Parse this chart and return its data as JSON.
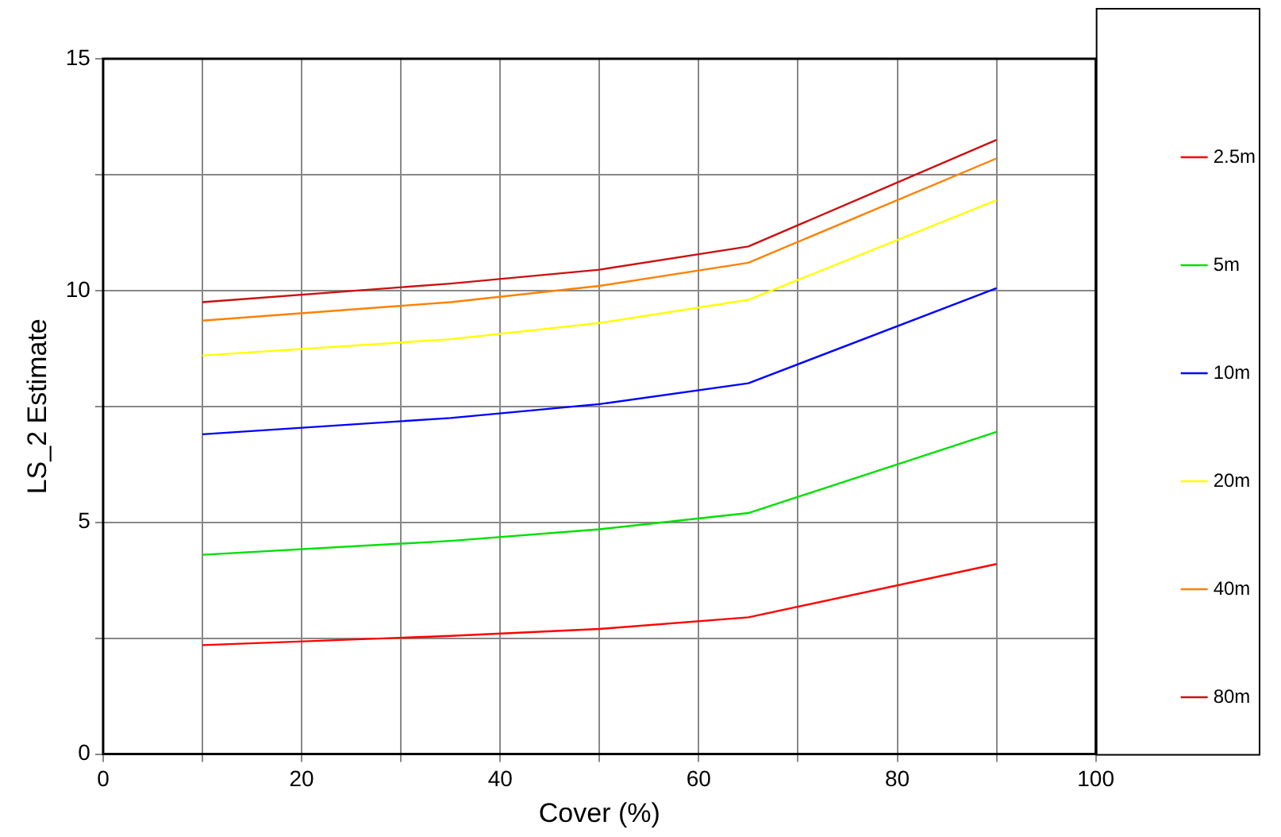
{
  "chart_data": {
    "type": "line",
    "xlabel": "Cover (%)",
    "ylabel": "LS_2 Estimate",
    "x": [
      10,
      35,
      50,
      65,
      90
    ],
    "series": [
      {
        "name": "2.5m",
        "color": "#ff0000",
        "values": [
          2.35,
          2.55,
          2.7,
          2.95,
          4.1
        ]
      },
      {
        "name": "5m",
        "color": "#00e000",
        "values": [
          4.3,
          4.6,
          4.85,
          5.2,
          6.95
        ]
      },
      {
        "name": "10m",
        "color": "#0000ff",
        "values": [
          6.9,
          7.25,
          7.55,
          8.0,
          10.05
        ]
      },
      {
        "name": "20m",
        "color": "#ffff00",
        "values": [
          8.6,
          8.95,
          9.3,
          9.8,
          11.95
        ]
      },
      {
        "name": "40m",
        "color": "#ff8000",
        "values": [
          9.35,
          9.75,
          10.1,
          10.6,
          12.85
        ]
      },
      {
        "name": "80m",
        "color": "#cc1010",
        "values": [
          9.75,
          10.15,
          10.45,
          10.95,
          13.25
        ]
      }
    ],
    "xlim": [
      0,
      100
    ],
    "xticks": [
      0,
      {
        "value": 10,
        "label": null
      },
      20,
      {
        "value": 30,
        "label": null
      },
      40,
      {
        "value": 50,
        "label": null
      },
      60,
      {
        "value": 70,
        "label": null
      },
      80,
      {
        "value": 90,
        "label": null
      },
      100
    ],
    "ylim": [
      0,
      15
    ],
    "yticks": [
      0,
      {
        "value": 2.5,
        "label": null
      },
      5,
      {
        "value": 7.5,
        "label": null
      },
      10,
      {
        "value": 12.5,
        "label": null
      },
      15
    ],
    "grid": true,
    "legend": "right",
    "marker": "none",
    "line_style": "solid"
  }
}
